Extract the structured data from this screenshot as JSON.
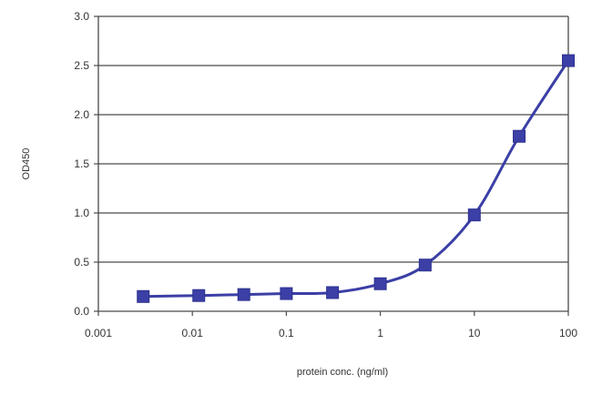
{
  "chart_data": {
    "type": "line",
    "xscale": "log",
    "xlabel": "protein conc. (ng/ml)",
    "ylabel": "OD450",
    "xlim": [
      0.001,
      100
    ],
    "ylim": [
      0,
      3.0
    ],
    "x_ticks": [
      0.001,
      0.01,
      0.1,
      1,
      10,
      100
    ],
    "x_tick_labels": [
      "0.001",
      "0.01",
      "0.1",
      "1",
      "10",
      "100"
    ],
    "y_ticks": [
      0,
      0.5,
      1.0,
      1.5,
      2.0,
      2.5,
      3.0
    ],
    "y_tick_labels": [
      "0.0",
      "0.5",
      "1.0",
      "1.5",
      "2.0",
      "2.5",
      "3.0"
    ],
    "grid": "horizontal",
    "legend": "none",
    "series": [
      {
        "x": [
          0.003,
          0.0117,
          0.0353,
          0.1,
          0.31,
          1.0,
          3.0,
          10,
          30,
          100
        ],
        "y": [
          0.15,
          0.16,
          0.17,
          0.18,
          0.19,
          0.28,
          0.47,
          0.98,
          1.78,
          2.55
        ],
        "color": "#3b3fa6",
        "marker": "square"
      }
    ]
  }
}
